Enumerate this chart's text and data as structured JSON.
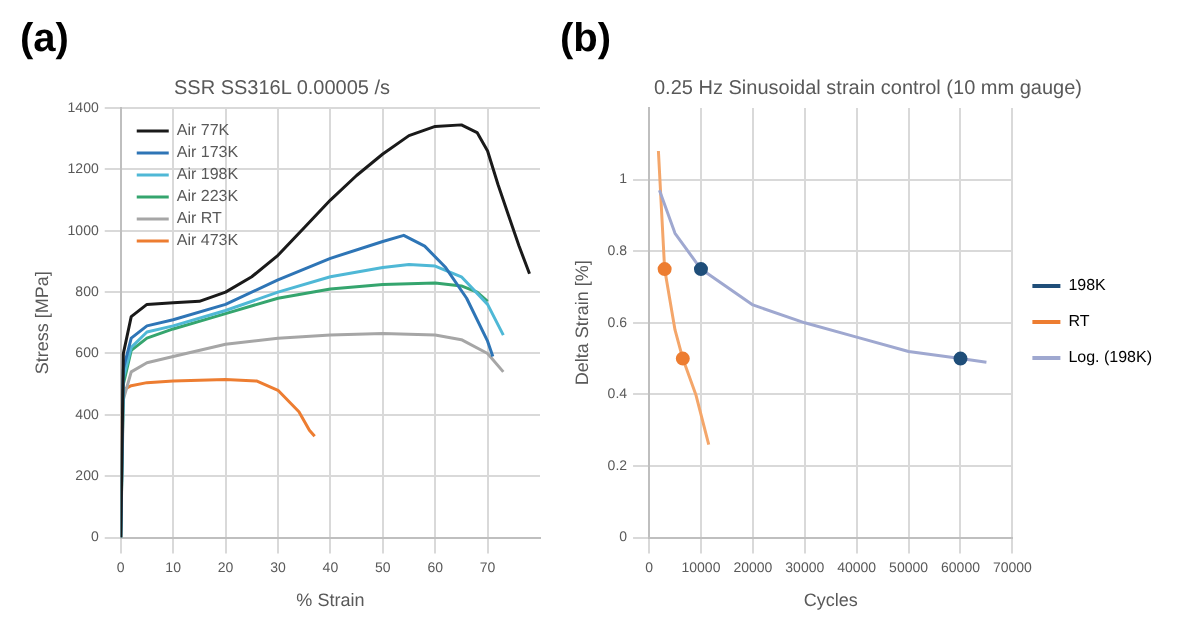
{
  "chart_data": [
    {
      "type": "line",
      "title": "SSR SS316L 0.00005 /s",
      "xlabel": "% Strain",
      "ylabel": "Stress [MPa]",
      "annotations": [
        "(a)"
      ],
      "xlim": [
        0,
        80
      ],
      "xticks": [
        0,
        10,
        20,
        30,
        40,
        50,
        60,
        70
      ],
      "ylim": [
        0,
        1400
      ],
      "yticks": [
        0,
        200,
        400,
        600,
        800,
        1000,
        1200,
        1400
      ],
      "grid": true,
      "legend": "top left",
      "series": [
        {
          "name": "Air 77K",
          "color": "#1a1a1a",
          "x": [
            0,
            0.5,
            2,
            5,
            10,
            15,
            20,
            25,
            30,
            35,
            40,
            45,
            50,
            55,
            60,
            65,
            68,
            70,
            72,
            74,
            76,
            78
          ],
          "values": [
            0,
            600,
            720,
            760,
            765,
            770,
            800,
            850,
            920,
            1010,
            1100,
            1180,
            1250,
            1310,
            1340,
            1345,
            1320,
            1260,
            1150,
            1050,
            950,
            860
          ]
        },
        {
          "name": "Air 173K",
          "color": "#2e75b6",
          "x": [
            0,
            0.5,
            2,
            5,
            10,
            20,
            30,
            40,
            50,
            54,
            58,
            62,
            66,
            70,
            71
          ],
          "values": [
            0,
            550,
            650,
            690,
            710,
            760,
            840,
            910,
            965,
            985,
            950,
            880,
            780,
            640,
            590
          ]
        },
        {
          "name": "Air 198K",
          "color": "#4fb8d6",
          "x": [
            0,
            0.5,
            2,
            5,
            10,
            20,
            30,
            40,
            50,
            55,
            60,
            65,
            70,
            73
          ],
          "values": [
            0,
            520,
            620,
            670,
            690,
            740,
            800,
            850,
            880,
            890,
            885,
            850,
            760,
            660
          ]
        },
        {
          "name": "Air 223K",
          "color": "#35a56e",
          "x": [
            0,
            0.5,
            2,
            5,
            10,
            20,
            30,
            40,
            50,
            60,
            65,
            68,
            70
          ],
          "values": [
            0,
            500,
            610,
            650,
            680,
            730,
            780,
            810,
            825,
            830,
            820,
            800,
            770
          ]
        },
        {
          "name": "Air RT",
          "color": "#a6a6a6",
          "x": [
            0,
            0.5,
            2,
            5,
            10,
            20,
            30,
            40,
            50,
            60,
            65,
            70,
            73
          ],
          "values": [
            0,
            450,
            540,
            570,
            590,
            630,
            650,
            660,
            665,
            660,
            645,
            600,
            540
          ]
        },
        {
          "name": "Air 473K",
          "color": "#ed7d31",
          "x": [
            0,
            0.3,
            2,
            5,
            10,
            20,
            26,
            30,
            34,
            36,
            37
          ],
          "values": [
            0,
            480,
            495,
            505,
            510,
            515,
            510,
            480,
            410,
            350,
            330
          ]
        }
      ]
    },
    {
      "type": "scatter",
      "title": "0.25 Hz Sinusoidal strain control (10 mm gauge)",
      "xlabel": "Cycles",
      "ylabel": "Delta Strain [%]",
      "annotations": [
        "(b)"
      ],
      "xlim": [
        0,
        70000
      ],
      "xticks": [
        0,
        10000,
        20000,
        30000,
        40000,
        50000,
        60000,
        70000
      ],
      "ylim": [
        0,
        1.2
      ],
      "yticks": [
        0,
        0.2,
        0.4,
        0.6,
        0.8,
        1
      ],
      "grid": true,
      "legend": "right",
      "series": [
        {
          "name": "198K",
          "color": "#1f4e79",
          "marker": "circle",
          "x": [
            10000,
            60000
          ],
          "values": [
            0.75,
            0.5
          ]
        },
        {
          "name": "RT",
          "color": "#ed7d31",
          "marker": "circle",
          "x": [
            3000,
            6500
          ],
          "values": [
            0.75,
            0.5
          ]
        },
        {
          "name": "Log. (198K)",
          "type": "line",
          "color": "#9fa8d0",
          "x": [
            2000,
            5000,
            10000,
            20000,
            30000,
            40000,
            50000,
            60000,
            65000
          ],
          "values": [
            0.97,
            0.85,
            0.75,
            0.65,
            0.6,
            0.56,
            0.52,
            0.5,
            0.49
          ]
        },
        {
          "type": "line",
          "color": "#f4a66a",
          "x": [
            1800,
            3000,
            5000,
            6500,
            9000,
            11500
          ],
          "values": [
            1.08,
            0.75,
            0.58,
            0.5,
            0.4,
            0.26
          ]
        }
      ]
    }
  ]
}
